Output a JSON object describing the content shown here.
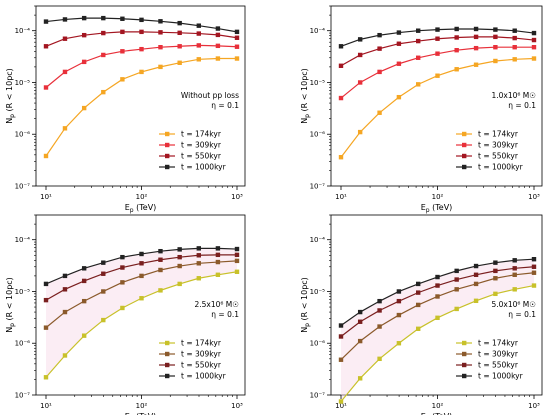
{
  "figure": {
    "panels": [
      {
        "annotation_lines": [
          "Without pp loss",
          "η = 0.1"
        ],
        "xlabel": "E$_p$ (TeV)",
        "ylabel": "N$_p$ (R < 10pc)",
        "xlabel_text": "Ep (TeV)",
        "ylabel_text": "Np (R < 10pc)"
      },
      {
        "annotation_lines": [
          "1.0x10⁶ M☉",
          "η = 0.1"
        ],
        "xlabel_text": "Ep (TeV)",
        "ylabel_text": "Np (R < 10pc)"
      },
      {
        "annotation_lines": [
          "2.5x10⁶ M☉",
          "η = 0.1"
        ],
        "xlabel_text": "Ep (TeV)",
        "ylabel_text": "Np (R < 10pc)"
      },
      {
        "annotation_lines": [
          "5.0x10⁶ M☉",
          "η = 0.1"
        ],
        "xlabel_text": "Ep (TeV)",
        "ylabel_text": "Np (R < 10pc)"
      }
    ]
  },
  "chart_data": [
    {
      "type": "line",
      "xscale": "log",
      "yscale": "log",
      "xlim": [
        10,
        1000
      ],
      "ylim": [
        1e-07,
        0.0003
      ],
      "xlabel": "Ep (TeV)",
      "ylabel": "Np (R < 10pc)",
      "xticks": [
        "10¹",
        "10²",
        "10³"
      ],
      "yticks": [
        "10⁻⁷",
        "10⁻⁶",
        "10⁻⁵",
        "10⁻⁴"
      ],
      "legend_position": "bottom-right",
      "x": [
        10,
        15.8,
        25.1,
        39.8,
        63.1,
        100,
        158,
        251,
        398,
        631,
        1000
      ],
      "series": [
        {
          "name": "t = 174kyr",
          "color": "#f5a623",
          "values": [
            3.8e-07,
            1.3e-06,
            3.2e-06,
            6.5e-06,
            1.15e-05,
            1.6e-05,
            2e-05,
            2.4e-05,
            2.8e-05,
            2.9e-05,
            2.9e-05
          ]
        },
        {
          "name": "t = 309kyr",
          "color": "#e8303a",
          "values": [
            8e-06,
            1.6e-05,
            2.5e-05,
            3.4e-05,
            4e-05,
            4.4e-05,
            4.8e-05,
            5e-05,
            5.2e-05,
            5.1e-05,
            4.9e-05
          ]
        },
        {
          "name": "t = 550kyr",
          "color": "#a31621",
          "values": [
            5e-05,
            7e-05,
            8.2e-05,
            9e-05,
            9.5e-05,
            9.5e-05,
            9.3e-05,
            9.1e-05,
            8.8e-05,
            8.3e-05,
            7.3e-05
          ]
        },
        {
          "name": "t = 1000kyr",
          "color": "#222222",
          "values": [
            0.00015,
            0.000165,
            0.000175,
            0.000175,
            0.00017,
            0.000162,
            0.000152,
            0.00014,
            0.000125,
            0.00011,
            9.5e-05
          ]
        }
      ]
    },
    {
      "type": "line",
      "xscale": "log",
      "yscale": "log",
      "xlim": [
        10,
        1000
      ],
      "ylim": [
        1e-07,
        0.0003
      ],
      "xlabel": "Ep (TeV)",
      "ylabel": "Np (R < 10pc)",
      "xticks": [
        "10¹",
        "10²",
        "10³"
      ],
      "yticks": [
        "10⁻⁷",
        "10⁻⁶",
        "10⁻⁵",
        "10⁻⁴"
      ],
      "legend_position": "bottom-right",
      "x": [
        10,
        15.8,
        25.1,
        39.8,
        63.1,
        100,
        158,
        251,
        398,
        631,
        1000
      ],
      "series": [
        {
          "name": "t = 174kyr",
          "color": "#f5a623",
          "values": [
            3.6e-07,
            1.1e-06,
            2.6e-06,
            5.2e-06,
            9.2e-06,
            1.35e-05,
            1.8e-05,
            2.2e-05,
            2.6e-05,
            2.8e-05,
            2.9e-05
          ]
        },
        {
          "name": "t = 309kyr",
          "color": "#e8303a",
          "values": [
            5e-06,
            1e-05,
            1.6e-05,
            2.3e-05,
            3e-05,
            3.6e-05,
            4.2e-05,
            4.6e-05,
            4.8e-05,
            4.8e-05,
            4.8e-05
          ]
        },
        {
          "name": "t = 550kyr",
          "color": "#a31621",
          "values": [
            2.1e-05,
            3.4e-05,
            4.5e-05,
            5.6e-05,
            6.3e-05,
            7e-05,
            7.4e-05,
            7.6e-05,
            7.6e-05,
            7.2e-05,
            6.6e-05
          ]
        },
        {
          "name": "t = 1000kyr",
          "color": "#222222",
          "values": [
            5e-05,
            6.8e-05,
            8.2e-05,
            9.2e-05,
            0.0001,
            0.000105,
            0.000108,
            0.000108,
            0.000105,
            0.0001,
            9e-05
          ]
        }
      ]
    },
    {
      "type": "line",
      "xscale": "log",
      "yscale": "log",
      "xlim": [
        10,
        1000
      ],
      "ylim": [
        1e-07,
        0.0003
      ],
      "xlabel": "Ep (TeV)",
      "ylabel": "Np (R < 10pc)",
      "xticks": [
        "10¹",
        "10²",
        "10³"
      ],
      "yticks": [
        "10⁻⁷",
        "10⁻⁶",
        "10⁻⁵",
        "10⁻⁴"
      ],
      "legend_position": "bottom-right",
      "x": [
        10,
        15.8,
        25.1,
        39.8,
        63.1,
        100,
        158,
        251,
        398,
        631,
        1000
      ],
      "series": [
        {
          "name": "t = 174kyr",
          "color": "#c8c12a",
          "values": [
            2.2e-07,
            5.8e-07,
            1.4e-06,
            2.8e-06,
            4.8e-06,
            7.4e-06,
            1.05e-05,
            1.4e-05,
            1.8e-05,
            2.1e-05,
            2.4e-05
          ]
        },
        {
          "name": "t = 309kyr",
          "color": "#8b5a2b",
          "values": [
            2e-06,
            4e-06,
            6.5e-06,
            1e-05,
            1.5e-05,
            2e-05,
            2.6e-05,
            3.1e-05,
            3.5e-05,
            3.7e-05,
            3.9e-05
          ]
        },
        {
          "name": "t = 550kyr",
          "color": "#7a1f1f",
          "values": [
            6.8e-06,
            1.1e-05,
            1.6e-05,
            2.2e-05,
            2.9e-05,
            3.5e-05,
            4.1e-05,
            4.6e-05,
            5e-05,
            5.1e-05,
            5.1e-05
          ]
        },
        {
          "name": "t = 1000kyr",
          "color": "#222222",
          "values": [
            1.4e-05,
            2e-05,
            2.8e-05,
            3.6e-05,
            4.6e-05,
            5.3e-05,
            6e-05,
            6.5e-05,
            6.8e-05,
            6.8e-05,
            6.6e-05
          ]
        }
      ]
    },
    {
      "type": "line",
      "xscale": "log",
      "yscale": "log",
      "xlim": [
        10,
        1000
      ],
      "ylim": [
        1e-07,
        0.0003
      ],
      "xlabel": "Ep (TeV)",
      "ylabel": "Np (R < 10pc)",
      "xticks": [
        "10¹",
        "10²",
        "10³"
      ],
      "yticks": [
        "10⁻⁷",
        "10⁻⁶",
        "10⁻⁵",
        "10⁻⁴"
      ],
      "legend_position": "bottom-right",
      "x": [
        10,
        15.8,
        25.1,
        39.8,
        63.1,
        100,
        158,
        251,
        398,
        631,
        1000
      ],
      "series": [
        {
          "name": "t = 174kyr",
          "color": "#c8c12a",
          "values": [
            7.5e-08,
            2.1e-07,
            5e-07,
            1e-06,
            1.9e-06,
            3.1e-06,
            4.6e-06,
            6.6e-06,
            9e-06,
            1.1e-05,
            1.3e-05
          ]
        },
        {
          "name": "t = 309kyr",
          "color": "#8b5a2b",
          "values": [
            4.8e-07,
            1.1e-06,
            2.1e-06,
            3.5e-06,
            5.5e-06,
            8e-06,
            1.1e-05,
            1.4e-05,
            1.8e-05,
            2.1e-05,
            2.3e-05
          ]
        },
        {
          "name": "t = 550kyr",
          "color": "#7a1f1f",
          "values": [
            1.35e-06,
            2.6e-06,
            4.3e-06,
            6.5e-06,
            9.5e-06,
            1.3e-05,
            1.7e-05,
            2.1e-05,
            2.5e-05,
            2.8e-05,
            3e-05
          ]
        },
        {
          "name": "t = 1000kyr",
          "color": "#222222",
          "values": [
            2.2e-06,
            4e-06,
            6.5e-06,
            1e-05,
            1.4e-05,
            1.9e-05,
            2.5e-05,
            3.1e-05,
            3.6e-05,
            4e-05,
            4.2e-05
          ]
        }
      ]
    }
  ]
}
